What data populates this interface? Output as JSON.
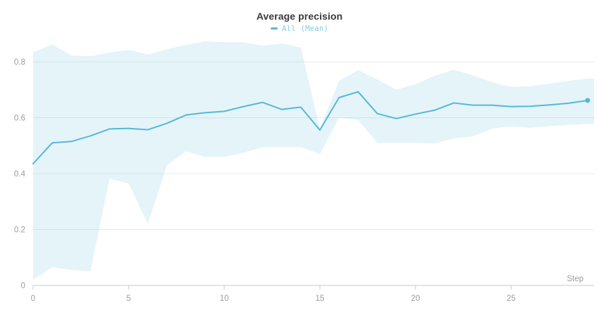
{
  "header": {
    "title": "Average precision",
    "legend_label": "All (Mean)"
  },
  "colors": {
    "line": "#56b8d8",
    "band_fill": "#56b8d8",
    "band_fill_opacity": 0.16,
    "legend_text": "#85cde1",
    "title_text": "#3a3a3a",
    "tick_text": "#9b9b9b",
    "axis_label_text": "#9b9b9b",
    "grid_line": "#eaeaea",
    "axis_line": "#c9c9c9",
    "background": "#ffffff"
  },
  "chart_data": {
    "type": "line",
    "title": "Average precision",
    "xlabel": "Step",
    "ylabel": "",
    "legend_position": "top",
    "grid": "horizontal",
    "xlim": [
      0,
      29.3
    ],
    "ylim": [
      0,
      0.883
    ],
    "xticks": [
      0,
      5,
      10,
      15,
      20,
      25
    ],
    "yticks": [
      0,
      0.2,
      0.4,
      0.6,
      0.8
    ],
    "ytick_labels": [
      "0",
      "0.2",
      "0.4",
      "0.6",
      "0.8"
    ],
    "x": [
      0,
      1,
      2,
      3,
      4,
      5,
      6,
      7,
      8,
      9,
      10,
      11,
      12,
      13,
      14,
      15,
      16,
      17,
      18,
      19,
      20,
      21,
      22,
      23,
      24,
      25,
      26,
      27,
      28,
      29
    ],
    "series": [
      {
        "name": "All (Mean)",
        "values": [
          0.435,
          0.51,
          0.515,
          0.535,
          0.56,
          0.562,
          0.557,
          0.58,
          0.61,
          0.618,
          0.623,
          0.64,
          0.655,
          0.63,
          0.638,
          0.556,
          0.672,
          0.693,
          0.615,
          0.597,
          0.613,
          0.627,
          0.653,
          0.645,
          0.645,
          0.64,
          0.641,
          0.646,
          0.652,
          0.662
        ],
        "band_upper": [
          0.833,
          0.863,
          0.823,
          0.82,
          0.833,
          0.843,
          0.826,
          0.845,
          0.861,
          0.873,
          0.87,
          0.87,
          0.858,
          0.865,
          0.852,
          0.56,
          0.732,
          0.77,
          0.737,
          0.7,
          0.72,
          0.75,
          0.772,
          0.752,
          0.727,
          0.71,
          0.713,
          0.722,
          0.732,
          0.74
        ],
        "band_lower": [
          0.02,
          0.065,
          0.055,
          0.05,
          0.382,
          0.365,
          0.22,
          0.43,
          0.48,
          0.46,
          0.46,
          0.475,
          0.495,
          0.495,
          0.495,
          0.47,
          0.6,
          0.592,
          0.51,
          0.51,
          0.51,
          0.508,
          0.526,
          0.533,
          0.561,
          0.569,
          0.564,
          0.57,
          0.575,
          0.578
        ],
        "end_marker": "dot-on-last-point"
      }
    ]
  }
}
